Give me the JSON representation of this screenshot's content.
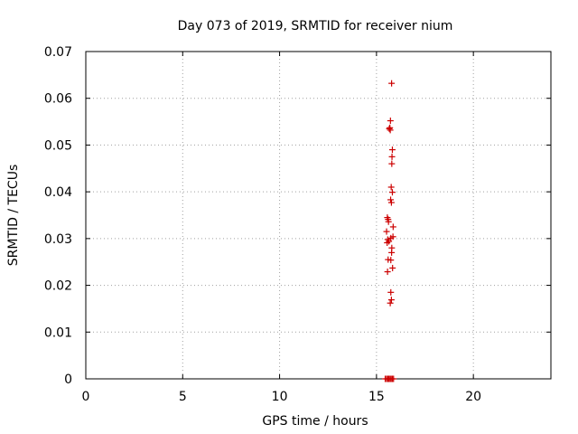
{
  "chart_data": {
    "type": "scatter",
    "title": "Day 073 of 2019, SRMTID for receiver nium",
    "xlabel": "GPS time / hours",
    "ylabel": "SRMTID / TECUs",
    "xlim": [
      0,
      24
    ],
    "ylim": [
      0,
      0.07
    ],
    "xticks": [
      0,
      5,
      10,
      15,
      20
    ],
    "yticks": [
      0,
      0.01,
      0.02,
      0.03,
      0.04,
      0.05,
      0.06,
      0.07
    ],
    "xtick_labels": [
      "0",
      "5",
      "10",
      "15",
      "20"
    ],
    "ytick_labels": [
      "0",
      "0.01",
      "0.02",
      "0.03",
      "0.04",
      "0.05",
      "0.06",
      "0.07"
    ],
    "grid": true,
    "marker": "+",
    "color": "#cc0000",
    "points": [
      {
        "x": 15.78,
        "y": 0.0632
      },
      {
        "x": 15.72,
        "y": 0.0552
      },
      {
        "x": 15.66,
        "y": 0.0535
      },
      {
        "x": 15.71,
        "y": 0.0532
      },
      {
        "x": 15.69,
        "y": 0.0537
      },
      {
        "x": 15.82,
        "y": 0.049
      },
      {
        "x": 15.8,
        "y": 0.0475
      },
      {
        "x": 15.79,
        "y": 0.046
      },
      {
        "x": 15.76,
        "y": 0.041
      },
      {
        "x": 15.82,
        "y": 0.0399
      },
      {
        "x": 15.73,
        "y": 0.0383
      },
      {
        "x": 15.77,
        "y": 0.0377
      },
      {
        "x": 15.56,
        "y": 0.0345
      },
      {
        "x": 15.6,
        "y": 0.0341
      },
      {
        "x": 15.62,
        "y": 0.0336
      },
      {
        "x": 15.86,
        "y": 0.0325
      },
      {
        "x": 15.52,
        "y": 0.0315
      },
      {
        "x": 15.85,
        "y": 0.0304
      },
      {
        "x": 15.74,
        "y": 0.0301
      },
      {
        "x": 15.58,
        "y": 0.0298
      },
      {
        "x": 15.64,
        "y": 0.0294
      },
      {
        "x": 15.55,
        "y": 0.0291
      },
      {
        "x": 15.79,
        "y": 0.028
      },
      {
        "x": 15.78,
        "y": 0.027
      },
      {
        "x": 15.6,
        "y": 0.0255
      },
      {
        "x": 15.74,
        "y": 0.0254
      },
      {
        "x": 15.83,
        "y": 0.0237
      },
      {
        "x": 15.57,
        "y": 0.0229
      },
      {
        "x": 15.74,
        "y": 0.0185
      },
      {
        "x": 15.77,
        "y": 0.0169
      },
      {
        "x": 15.71,
        "y": 0.0162
      },
      {
        "x": 15.45,
        "y": 0.0
      },
      {
        "x": 15.52,
        "y": 0.0
      },
      {
        "x": 15.58,
        "y": 0.0
      },
      {
        "x": 15.64,
        "y": 0.0
      },
      {
        "x": 15.7,
        "y": 0.0
      },
      {
        "x": 15.76,
        "y": 0.0
      },
      {
        "x": 15.82,
        "y": 0.0
      },
      {
        "x": 15.88,
        "y": 0.0
      }
    ]
  }
}
